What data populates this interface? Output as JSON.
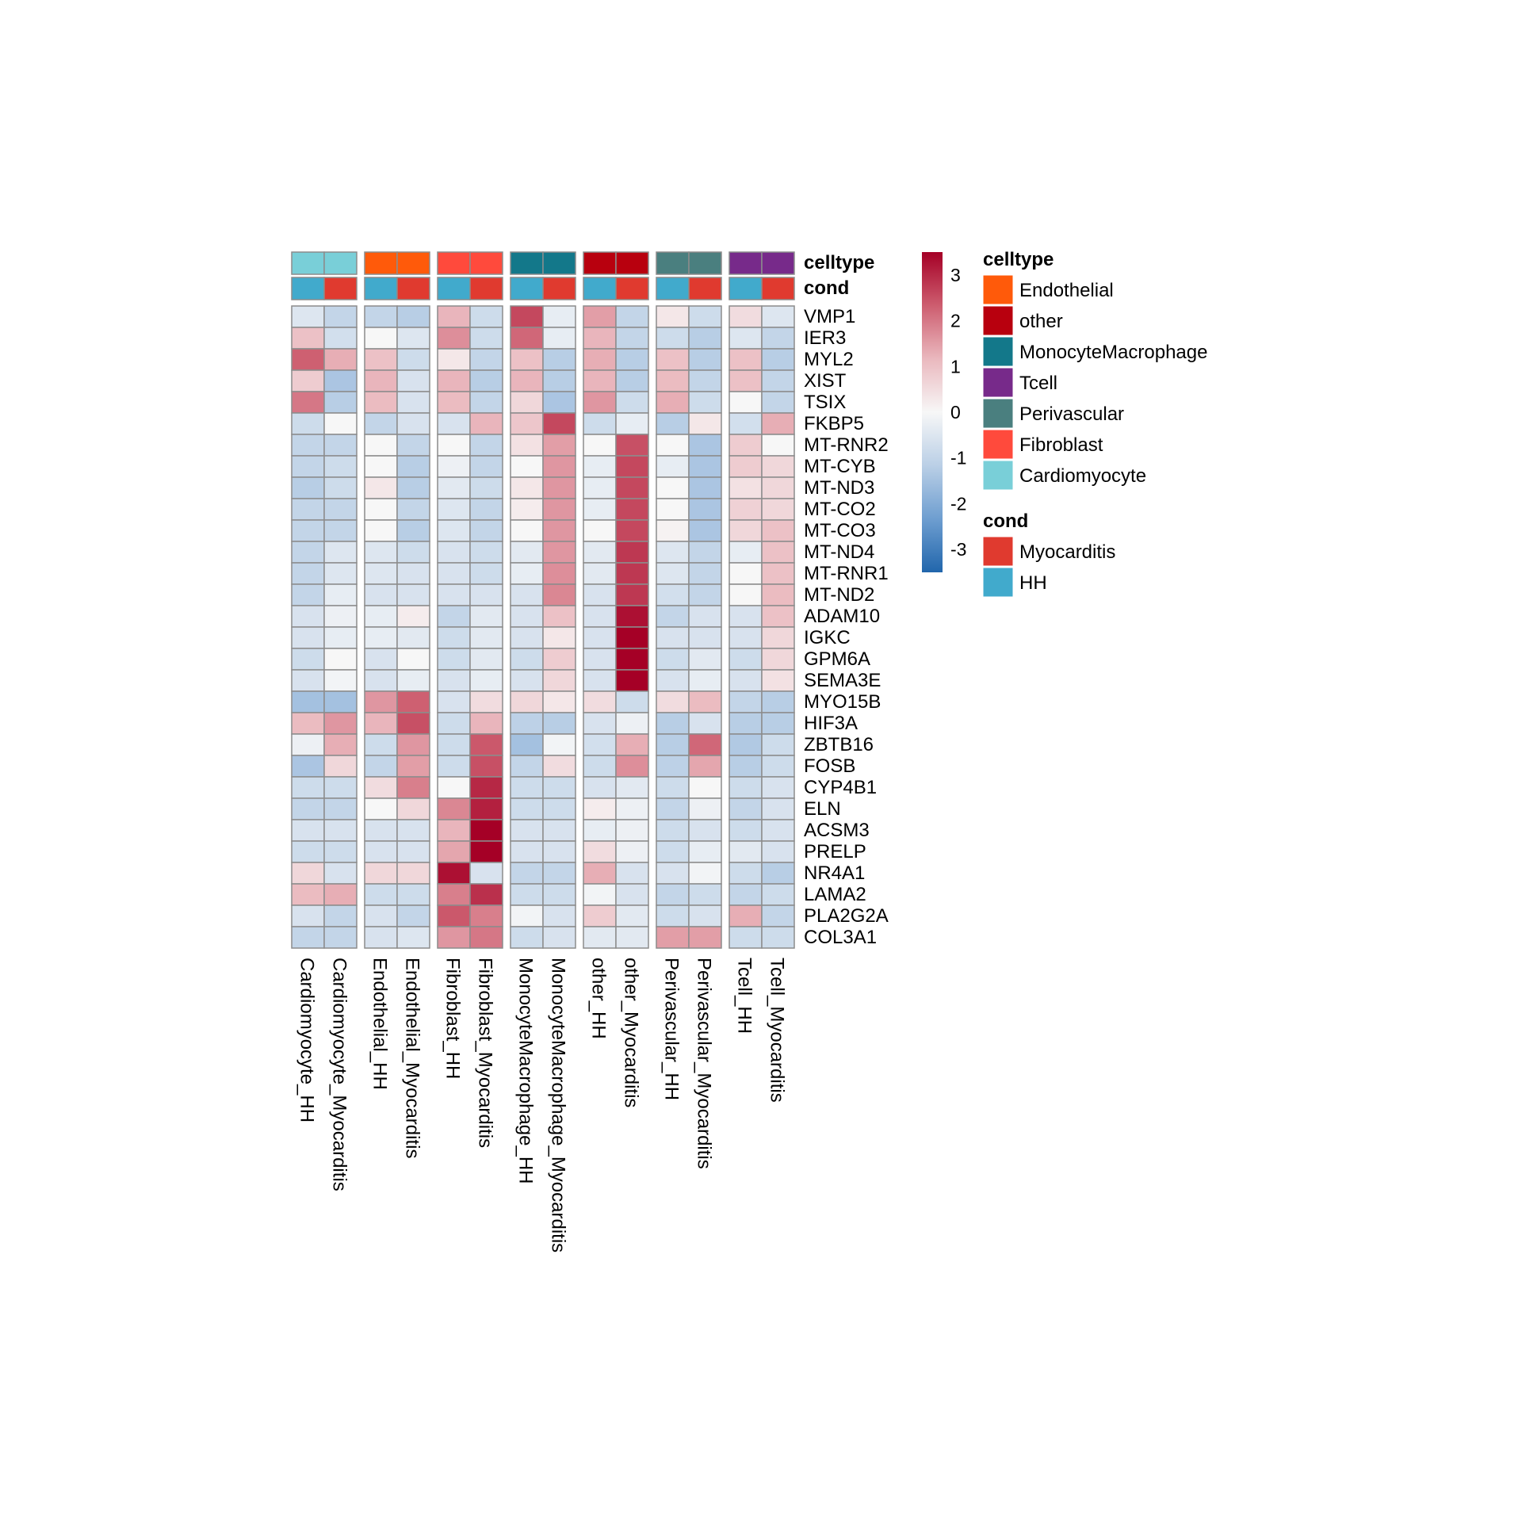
{
  "chart_data": {
    "type": "heatmap",
    "title": "",
    "columns": [
      "Cardiomyocyte_HH",
      "Cardiomyocyte_Myocarditis",
      "Endothelial_HH",
      "Endothelial_Myocarditis",
      "Fibroblast_HH",
      "Fibroblast_Myocarditis",
      "MonocyteMacrophage_HH",
      "MonocyteMacrophage_Myocarditis",
      "other_HH",
      "other_Myocarditis",
      "Perivascular_HH",
      "Perivascular_Myocarditis",
      "Tcell_HH",
      "Tcell_Myocarditis"
    ],
    "rows": [
      "VMP1",
      "IER3",
      "MYL2",
      "XIST",
      "TSIX",
      "FKBP5",
      "MT-RNR2",
      "MT-CYB",
      "MT-ND3",
      "MT-CO2",
      "MT-CO3",
      "MT-ND4",
      "MT-RNR1",
      "MT-ND2",
      "ADAM10",
      "IGKC",
      "GPM6A",
      "SEMA3E",
      "MYO15B",
      "HIF3A",
      "ZBTB16",
      "FOSB",
      "CYP4B1",
      "ELN",
      "ACSM3",
      "PRELP",
      "NR4A1",
      "LAMA2",
      "PLA2G2A",
      "COL3A1"
    ],
    "values": [
      [
        -0.5,
        -1.0,
        -1.0,
        -1.2,
        1.2,
        -0.8,
        2.6,
        -0.3,
        1.5,
        -1.0,
        0.3,
        -0.8,
        0.5,
        -0.5
      ],
      [
        1.0,
        -0.7,
        0.0,
        -0.5,
        1.7,
        -0.8,
        2.2,
        -0.3,
        1.2,
        -1.0,
        -0.8,
        -1.2,
        -0.5,
        -1.0
      ],
      [
        2.3,
        1.3,
        1.0,
        -0.8,
        0.3,
        -1.0,
        1.0,
        -1.2,
        1.3,
        -1.2,
        1.0,
        -1.2,
        1.0,
        -1.2
      ],
      [
        0.8,
        -1.4,
        1.2,
        -0.6,
        1.2,
        -1.2,
        1.2,
        -1.2,
        1.2,
        -1.2,
        1.1,
        -1.0,
        1.0,
        -1.0
      ],
      [
        2.0,
        -1.2,
        1.1,
        -0.6,
        1.1,
        -1.0,
        0.6,
        -1.4,
        1.6,
        -0.8,
        1.3,
        -0.8,
        0.0,
        -1.0
      ],
      [
        -0.8,
        0.0,
        -1.0,
        -0.6,
        -0.6,
        1.2,
        0.9,
        2.6,
        -0.8,
        -0.3,
        -1.2,
        0.3,
        -0.7,
        1.3
      ],
      [
        -1.0,
        -1.0,
        0.0,
        -1.0,
        0.0,
        -1.0,
        0.4,
        1.5,
        0.0,
        2.5,
        0.0,
        -1.4,
        0.8,
        0.0
      ],
      [
        -1.0,
        -0.8,
        0.0,
        -1.2,
        -0.2,
        -1.0,
        0.0,
        1.6,
        -0.3,
        2.6,
        -0.3,
        -1.4,
        0.8,
        0.6
      ],
      [
        -1.2,
        -0.8,
        0.3,
        -1.2,
        -0.4,
        -0.8,
        0.3,
        1.6,
        -0.3,
        2.6,
        0.0,
        -1.4,
        0.4,
        0.6
      ],
      [
        -1.0,
        -1.0,
        0.0,
        -1.0,
        -0.5,
        -1.0,
        0.2,
        1.6,
        -0.3,
        2.6,
        0.0,
        -1.4,
        0.7,
        0.6
      ],
      [
        -1.0,
        -1.0,
        0.0,
        -1.2,
        -0.5,
        -1.0,
        0.0,
        1.6,
        0.0,
        2.6,
        0.1,
        -1.4,
        0.6,
        1.0
      ],
      [
        -1.0,
        -0.5,
        -0.5,
        -0.8,
        -0.6,
        -0.8,
        -0.4,
        1.6,
        -0.4,
        2.8,
        -0.5,
        -1.0,
        -0.3,
        1.0
      ],
      [
        -1.0,
        -0.5,
        -0.5,
        -0.6,
        -0.6,
        -0.8,
        -0.3,
        1.7,
        -0.4,
        2.8,
        -0.5,
        -1.0,
        0.0,
        1.0
      ],
      [
        -1.0,
        -0.3,
        -0.6,
        -0.6,
        -0.6,
        -0.6,
        -0.6,
        1.8,
        -0.6,
        2.8,
        -0.7,
        -1.0,
        0.0,
        1.1
      ],
      [
        -0.6,
        -0.2,
        -0.3,
        0.2,
        -1.0,
        -0.4,
        -0.6,
        1.0,
        -0.6,
        3.3,
        -1.0,
        -0.6,
        -0.6,
        1.0
      ],
      [
        -0.6,
        -0.3,
        -0.3,
        -0.4,
        -0.8,
        -0.4,
        -0.6,
        0.3,
        -0.6,
        3.5,
        -0.6,
        -0.6,
        -0.6,
        0.6
      ],
      [
        -0.8,
        0.0,
        -0.6,
        0.0,
        -0.8,
        -0.4,
        -0.8,
        0.8,
        -0.6,
        3.5,
        -0.8,
        -0.4,
        -0.8,
        0.6
      ],
      [
        -0.6,
        -0.1,
        -0.6,
        -0.3,
        -0.6,
        -0.3,
        -0.6,
        0.6,
        -0.6,
        3.5,
        -0.6,
        -0.3,
        -0.6,
        0.4
      ],
      [
        -1.5,
        -1.5,
        1.6,
        2.3,
        -0.6,
        0.5,
        0.6,
        0.3,
        0.5,
        -0.8,
        0.5,
        1.1,
        -1.0,
        -1.2
      ],
      [
        1.1,
        1.6,
        1.2,
        2.5,
        -0.8,
        1.2,
        -1.1,
        -1.2,
        -0.6,
        -0.2,
        -1.2,
        -0.6,
        -1.2,
        -1.2
      ],
      [
        -0.2,
        1.3,
        -0.8,
        1.6,
        -0.8,
        2.4,
        -1.5,
        -0.1,
        -0.7,
        1.3,
        -1.2,
        2.2,
        -1.3,
        -0.8
      ],
      [
        -1.4,
        0.6,
        -1.0,
        1.5,
        -0.8,
        2.5,
        -1.0,
        0.5,
        -0.8,
        1.7,
        -1.1,
        1.4,
        -1.2,
        -0.8
      ],
      [
        -0.8,
        -0.8,
        0.5,
        1.9,
        0.0,
        3.0,
        -0.8,
        -0.8,
        -0.6,
        -0.4,
        -0.8,
        0.0,
        -0.8,
        -0.6
      ],
      [
        -1.0,
        -1.0,
        0.0,
        0.6,
        1.8,
        3.1,
        -0.8,
        -0.8,
        0.2,
        -0.2,
        -1.0,
        -0.2,
        -1.0,
        -0.6
      ],
      [
        -0.6,
        -0.6,
        -0.6,
        -0.6,
        1.2,
        3.5,
        -0.6,
        -0.6,
        -0.3,
        -0.2,
        -0.8,
        -0.6,
        -0.8,
        -0.6
      ],
      [
        -0.8,
        -0.8,
        -0.6,
        -0.6,
        1.4,
        3.5,
        -0.6,
        -0.6,
        0.5,
        -0.2,
        -0.8,
        -0.3,
        -0.4,
        -0.6
      ],
      [
        0.6,
        -0.6,
        0.6,
        0.6,
        3.3,
        -0.6,
        -1.0,
        -1.0,
        1.3,
        -0.6,
        -0.6,
        -0.1,
        -0.8,
        -1.2
      ],
      [
        1.1,
        1.3,
        -0.8,
        -0.8,
        1.9,
        2.9,
        -0.8,
        -0.8,
        -0.1,
        -0.6,
        -1.0,
        -0.8,
        -1.0,
        -0.8
      ],
      [
        -0.6,
        -1.0,
        -0.6,
        -1.0,
        2.4,
        1.9,
        -0.1,
        -0.6,
        0.8,
        -0.4,
        -0.8,
        -0.6,
        1.3,
        -1.0
      ],
      [
        -1.0,
        -1.0,
        -0.6,
        -0.5,
        1.6,
        2.0,
        -0.8,
        -0.6,
        -0.4,
        -0.4,
        1.5,
        1.5,
        -0.8,
        -0.8
      ]
    ],
    "column_annotations": {
      "celltype": [
        "Cardiomyocyte",
        "Cardiomyocyte",
        "Endothelial",
        "Endothelial",
        "Fibroblast",
        "Fibroblast",
        "MonocyteMacrophage",
        "MonocyteMacrophage",
        "other",
        "other",
        "Perivascular",
        "Perivascular",
        "Tcell",
        "Tcell"
      ],
      "cond": [
        "HH",
        "Myocarditis",
        "HH",
        "Myocarditis",
        "HH",
        "Myocarditis",
        "HH",
        "Myocarditis",
        "HH",
        "Myocarditis",
        "HH",
        "Myocarditis",
        "HH",
        "Myocarditis"
      ]
    },
    "annotation_titles": {
      "celltype": "celltype",
      "cond": "cond"
    },
    "legends": {
      "celltype": {
        "title": "celltype",
        "entries": [
          {
            "label": "Endothelial",
            "color": "#FF5A0A"
          },
          {
            "label": "other",
            "color": "#B8000E"
          },
          {
            "label": "MonocyteMacrophage",
            "color": "#13788A"
          },
          {
            "label": "Tcell",
            "color": "#772A8A"
          },
          {
            "label": "Perivascular",
            "color": "#4A7F7F"
          },
          {
            "label": "Fibroblast",
            "color": "#FF4A3C"
          },
          {
            "label": "Cardiomyocyte",
            "color": "#79CFD8"
          }
        ]
      },
      "cond": {
        "title": "cond",
        "entries": [
          {
            "label": "Myocarditis",
            "color": "#E03A2F"
          },
          {
            "label": "HH",
            "color": "#41AACC"
          }
        ]
      }
    },
    "colorscale": {
      "range": [
        -3.5,
        3.5
      ],
      "ticks": [
        3,
        2,
        1,
        0,
        -1,
        -2,
        -3
      ],
      "stops": [
        "#2166AC",
        "#6E9ED0",
        "#BACFE6",
        "#F7F7F7",
        "#EAB8BE",
        "#CD5D6F",
        "#A50026"
      ]
    },
    "gaps": {
      "column_groups_of": 2
    }
  }
}
